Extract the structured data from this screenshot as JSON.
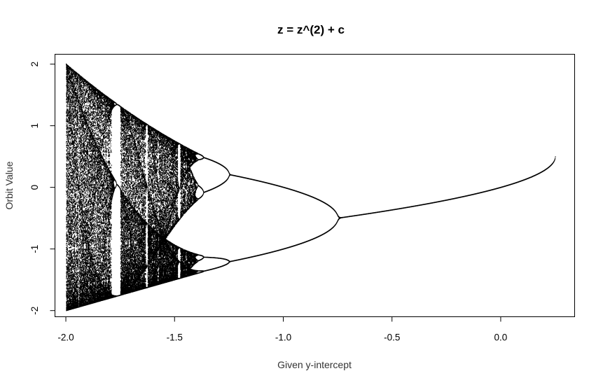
{
  "chart_data": {
    "type": "scatter",
    "title": "z = z^(2) + c",
    "xlabel": "Given y-intercept",
    "ylabel": "Orbit Value",
    "xlim": [
      -2.05,
      0.34
    ],
    "ylim": [
      -2.1,
      2.16
    ],
    "xticks": [
      -2.0,
      -1.5,
      -1.0,
      -0.5,
      0.0
    ],
    "xtick_labels": [
      "-2.0",
      "-1.5",
      "-1.0",
      "-0.5",
      "0.0"
    ],
    "yticks": [
      -2,
      -1,
      0,
      1,
      2
    ],
    "ytick_labels": [
      "-2",
      "-1",
      "0",
      "1",
      "2"
    ],
    "grid": false,
    "legend": "none",
    "point_color": "#000000",
    "function": "z = z^2 + c",
    "c_range": [
      -2.0,
      0.25
    ],
    "z0": 0,
    "orbit_values": "iterate z = z^2 + c from z0, plot the values after the transient, for each c in c_range"
  }
}
